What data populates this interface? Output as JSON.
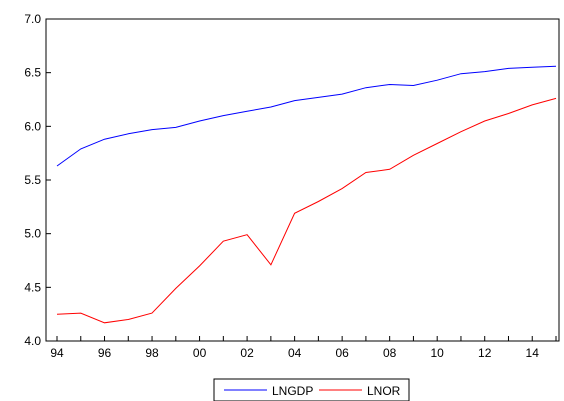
{
  "chart_data": {
    "type": "line",
    "x": [
      "94",
      "95",
      "96",
      "97",
      "98",
      "99",
      "00",
      "01",
      "02",
      "03",
      "04",
      "05",
      "06",
      "07",
      "08",
      "09",
      "10",
      "11",
      "12",
      "13",
      "14",
      "15"
    ],
    "xticks": [
      "94",
      "96",
      "98",
      "00",
      "02",
      "04",
      "06",
      "08",
      "10",
      "12",
      "14"
    ],
    "yticks": [
      "4.0",
      "4.5",
      "5.0",
      "5.5",
      "6.0",
      "6.5",
      "7.0"
    ],
    "ylim": [
      4.0,
      7.0
    ],
    "grid": false,
    "legend_position": "bottom-center",
    "series": [
      {
        "name": "LNGDP",
        "color": "#0000ff",
        "values": [
          5.63,
          5.79,
          5.88,
          5.93,
          5.97,
          5.99,
          6.05,
          6.1,
          6.14,
          6.18,
          6.24,
          6.27,
          6.3,
          6.36,
          6.39,
          6.38,
          6.43,
          6.49,
          6.51,
          6.54,
          6.55,
          6.56
        ]
      },
      {
        "name": "LNOR",
        "color": "#ff0000",
        "values": [
          4.25,
          4.26,
          4.17,
          4.2,
          4.26,
          4.49,
          4.7,
          4.93,
          4.99,
          4.71,
          5.19,
          5.3,
          5.42,
          5.57,
          5.6,
          5.73,
          5.84,
          5.95,
          6.05,
          6.12,
          6.2,
          6.26
        ]
      }
    ]
  }
}
